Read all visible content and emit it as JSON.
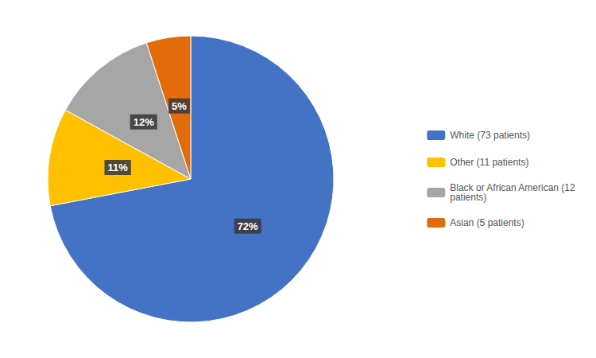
{
  "chart_data": {
    "type": "pie",
    "categories": [
      "White (73 patients)",
      "Other (11 patients)",
      "Black or African American (12\npatients)",
      "Asian (5 patients)"
    ],
    "values": [
      72,
      11,
      12,
      5
    ],
    "value_labels": [
      "72%",
      "11%",
      "12%",
      "5%"
    ],
    "colors": [
      "#4472C4",
      "#FFC000",
      "#A6A6A6",
      "#E36C0A"
    ],
    "data_labels": true,
    "legend": "right"
  }
}
